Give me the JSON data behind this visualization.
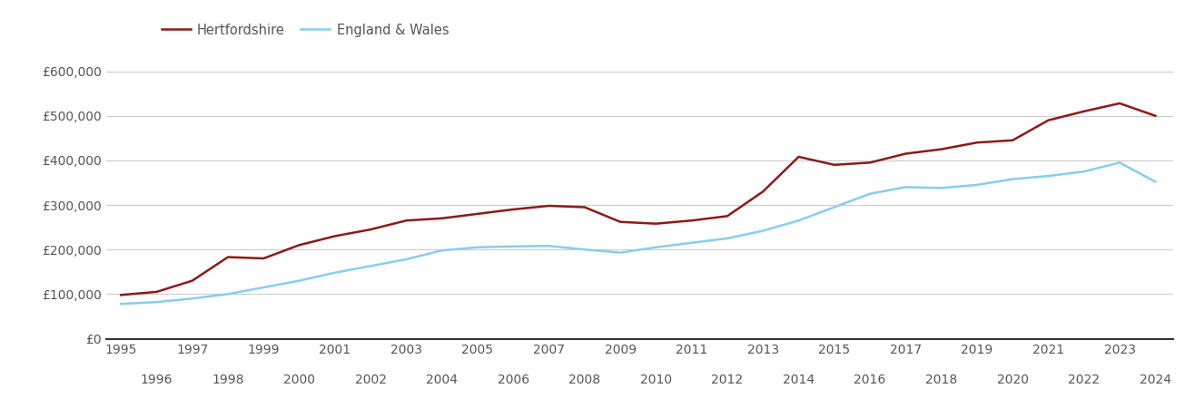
{
  "hertfordshire": {
    "years": [
      1995,
      1996,
      1997,
      1998,
      1999,
      2000,
      2001,
      2002,
      2003,
      2004,
      2005,
      2006,
      2007,
      2008,
      2009,
      2010,
      2011,
      2012,
      2013,
      2014,
      2015,
      2016,
      2017,
      2018,
      2019,
      2020,
      2021,
      2022,
      2023,
      2024
    ],
    "values": [
      98000,
      105000,
      130000,
      183000,
      180000,
      210000,
      230000,
      245000,
      265000,
      270000,
      280000,
      290000,
      298000,
      295000,
      262000,
      258000,
      265000,
      275000,
      330000,
      408000,
      390000,
      395000,
      415000,
      425000,
      440000,
      445000,
      490000,
      510000,
      528000,
      500000
    ]
  },
  "england_wales": {
    "years": [
      1995,
      1996,
      1997,
      1998,
      1999,
      2000,
      2001,
      2002,
      2003,
      2004,
      2005,
      2006,
      2007,
      2008,
      2009,
      2010,
      2011,
      2012,
      2013,
      2014,
      2015,
      2016,
      2017,
      2018,
      2019,
      2020,
      2021,
      2022,
      2023,
      2024
    ],
    "values": [
      78000,
      82000,
      90000,
      100000,
      115000,
      130000,
      148000,
      163000,
      178000,
      198000,
      205000,
      207000,
      208000,
      200000,
      193000,
      205000,
      215000,
      225000,
      242000,
      265000,
      295000,
      325000,
      340000,
      338000,
      345000,
      358000,
      365000,
      375000,
      395000,
      352000
    ]
  },
  "herts_color": "#8B1A1A",
  "ew_color": "#87CEEB",
  "line_width": 1.8,
  "background_color": "#ffffff",
  "grid_color": "#cccccc",
  "ylim": [
    0,
    650000
  ],
  "yticks": [
    0,
    100000,
    200000,
    300000,
    400000,
    500000,
    600000
  ],
  "ytick_labels": [
    "£0",
    "£100,000",
    "£200,000",
    "£300,000",
    "£400,000",
    "£500,000",
    "£600,000"
  ],
  "legend_herts": "Hertfordshire",
  "legend_ew": "England & Wales",
  "odd_years": [
    1995,
    1997,
    1999,
    2001,
    2003,
    2005,
    2007,
    2009,
    2011,
    2013,
    2015,
    2017,
    2019,
    2021,
    2023
  ],
  "even_years": [
    1996,
    1998,
    2000,
    2002,
    2004,
    2006,
    2008,
    2010,
    2012,
    2014,
    2016,
    2018,
    2020,
    2022,
    2024
  ],
  "tick_fontsize": 10,
  "tick_color": "#555555",
  "xlim_left": 1994.6,
  "xlim_right": 2024.5
}
